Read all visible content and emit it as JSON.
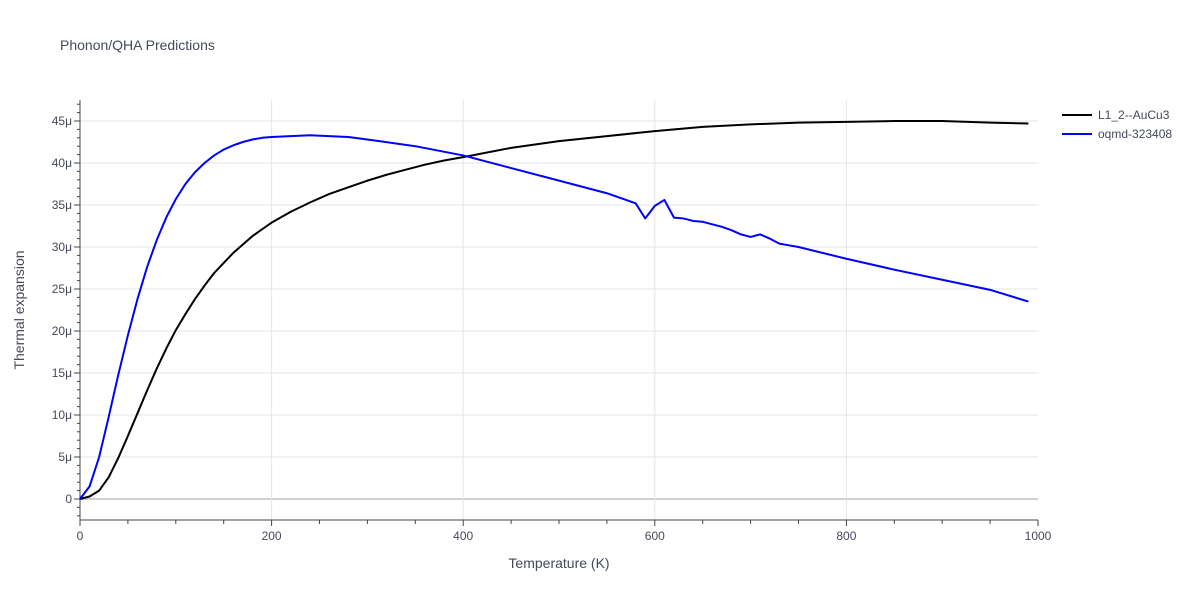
{
  "chart_data": {
    "type": "line",
    "title": "Phonon/QHA Predictions",
    "xlabel": "Temperature (K)",
    "ylabel": "Thermal expansion",
    "xlim": [
      0,
      1000
    ],
    "ylim": [
      -2.5e-06,
      4.75e-05
    ],
    "x_ticks": [
      0,
      200,
      400,
      600,
      800,
      1000
    ],
    "x_tick_labels": [
      "0",
      "200",
      "400",
      "600",
      "800",
      "1000"
    ],
    "y_ticks": [
      0,
      5e-06,
      1e-05,
      1.5e-05,
      2e-05,
      2.5e-05,
      3e-05,
      3.5e-05,
      4e-05,
      4.5e-05
    ],
    "y_tick_labels": [
      "0",
      "5μ",
      "10μ",
      "15μ",
      "20μ",
      "25μ",
      "30μ",
      "35μ",
      "40μ",
      "45μ"
    ],
    "grid": true,
    "legend_position": "top-right",
    "series": [
      {
        "name": "L1_2--AuCu3",
        "color": "#000000",
        "x": [
          0,
          10,
          20,
          30,
          40,
          50,
          60,
          70,
          80,
          90,
          100,
          110,
          120,
          130,
          140,
          150,
          160,
          170,
          180,
          190,
          200,
          220,
          240,
          260,
          280,
          300,
          320,
          340,
          360,
          380,
          400,
          450,
          500,
          550,
          600,
          650,
          700,
          750,
          800,
          850,
          900,
          950,
          990
        ],
        "y": [
          0,
          3e-07,
          1e-06,
          2.6e-06,
          4.9e-06,
          7.5e-06,
          1.02e-05,
          1.29e-05,
          1.55e-05,
          1.79e-05,
          2.01e-05,
          2.2e-05,
          2.38e-05,
          2.54e-05,
          2.69e-05,
          2.81e-05,
          2.93e-05,
          3.03e-05,
          3.13e-05,
          3.21e-05,
          3.29e-05,
          3.42e-05,
          3.53e-05,
          3.63e-05,
          3.71e-05,
          3.79e-05,
          3.86e-05,
          3.92e-05,
          3.98e-05,
          4.03e-05,
          4.07e-05,
          4.18e-05,
          4.26e-05,
          4.32e-05,
          4.38e-05,
          4.43e-05,
          4.46e-05,
          4.48e-05,
          4.49e-05,
          4.5e-05,
          4.5e-05,
          4.48e-05,
          4.47e-05
        ]
      },
      {
        "name": "oqmd-323408",
        "color": "#0000ff",
        "x": [
          0,
          10,
          20,
          30,
          40,
          50,
          60,
          70,
          80,
          90,
          100,
          110,
          120,
          130,
          140,
          150,
          160,
          170,
          180,
          190,
          200,
          220,
          240,
          260,
          280,
          300,
          350,
          400,
          450,
          500,
          550,
          580,
          590,
          600,
          610,
          620,
          630,
          640,
          650,
          660,
          670,
          680,
          690,
          700,
          710,
          720,
          730,
          740,
          750,
          800,
          850,
          900,
          950,
          990
        ],
        "y": [
          0,
          1.5e-06,
          5e-06,
          9.8e-06,
          1.48e-05,
          1.95e-05,
          2.38e-05,
          2.76e-05,
          3.08e-05,
          3.35e-05,
          3.57e-05,
          3.75e-05,
          3.89e-05,
          4e-05,
          4.09e-05,
          4.16e-05,
          4.21e-05,
          4.25e-05,
          4.28e-05,
          4.3e-05,
          4.31e-05,
          4.32e-05,
          4.33e-05,
          4.32e-05,
          4.31e-05,
          4.28e-05,
          4.2e-05,
          4.09e-05,
          3.94e-05,
          3.79e-05,
          3.64e-05,
          3.52e-05,
          3.34e-05,
          3.49e-05,
          3.56e-05,
          3.35e-05,
          3.34e-05,
          3.31e-05,
          3.3e-05,
          3.27e-05,
          3.24e-05,
          3.2e-05,
          3.15e-05,
          3.12e-05,
          3.15e-05,
          3.1e-05,
          3.04e-05,
          3.02e-05,
          3e-05,
          2.86e-05,
          2.73e-05,
          2.61e-05,
          2.49e-05,
          2.35e-05
        ]
      }
    ]
  }
}
